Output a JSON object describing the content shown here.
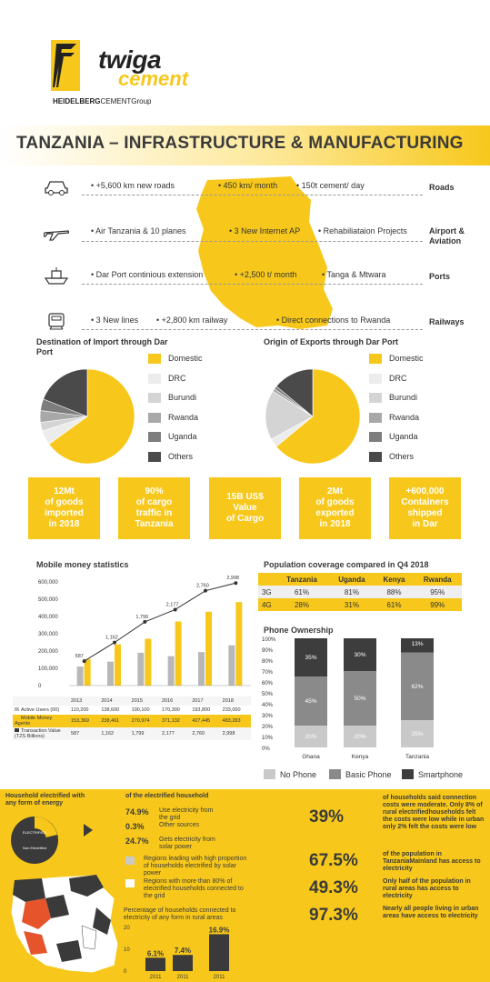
{
  "header": {
    "logo_line1": "twiga",
    "logo_line2": "cement",
    "logo_sub_bold": "HEIDELBERG",
    "logo_sub_rest": "CEMENTGroup",
    "title": "TANZANIA – INFRASTRUCTURE & MANUFACTURING"
  },
  "infrastructure": [
    {
      "icon": "car-icon",
      "category": "Roads",
      "items": [
        "+5,600 km new roads",
        "450 km/ month",
        "150t cement/ day"
      ]
    },
    {
      "icon": "airplane-icon",
      "category": "Airport &\nAviation",
      "items": [
        "Air Tanzania & 10 planes",
        "3 New Internet AP",
        "Rehabiliataion Projects"
      ]
    },
    {
      "icon": "ship-icon",
      "category": "Ports",
      "items": [
        "Dar Port continious extension",
        "+2,500 t/ month",
        "Tanga & Mtwara"
      ]
    },
    {
      "icon": "train-icon",
      "category": "Railways",
      "items": [
        "3 New lines",
        "+2,800 km railway",
        "Direct connections to Rwanda"
      ]
    }
  ],
  "import_pie": {
    "title": "Destination of Import through Dar Port",
    "labels": [
      "Domestic",
      "DRC",
      "Burundi",
      "Rwanda",
      "Uganda",
      "Others"
    ],
    "values": [
      65,
      5,
      3,
      4,
      4,
      19
    ],
    "colors": [
      "#f7c81b",
      "#ececec",
      "#d4d4d4",
      "#a8a8a8",
      "#7d7d7d",
      "#4a4a4a"
    ]
  },
  "export_pie": {
    "title": "Origin of Exports through Dar Port",
    "labels": [
      "Domestic",
      "DRC",
      "Burundi",
      "Rwanda",
      "Uganda",
      "Others"
    ],
    "values": [
      64,
      3,
      17,
      1,
      1,
      14
    ],
    "colors": [
      "#f7c81b",
      "#ececec",
      "#d4d4d4",
      "#a8a8a8",
      "#7d7d7d",
      "#4a4a4a"
    ]
  },
  "stats": [
    "12Mt\nof goods\nimported\nin 2018",
    "90%\nof cargo\ntraffic in\nTanzania",
    "15B US$\nValue\nof Cargo",
    "2Mt\nof goods\nexported\nin 2018",
    "+600,000\nContainers\nshipped\nin Dar"
  ],
  "chart_data": [
    {
      "type": "bar",
      "title": "Mobile money statistics",
      "categories": [
        "2013",
        "2014",
        "2015",
        "2016",
        "2017",
        "2018"
      ],
      "ylim": [
        0,
        600000
      ],
      "yticks": [
        "600,000",
        "500,000",
        "400,000",
        "300,000",
        "200,000",
        "100,000",
        "0"
      ],
      "series": [
        {
          "name": "Active Users (00)",
          "values": [
            110200,
            138600,
            190100,
            170300,
            193800,
            233000
          ],
          "display": [
            "110,200",
            "138,600",
            "190,100",
            "170,300",
            "193,800",
            "233,000"
          ],
          "color": "#b8b8b8"
        },
        {
          "name": "Mobile Money Agents",
          "values": [
            153369,
            238461,
            270974,
            371132,
            427445,
            483283
          ],
          "display": [
            "153,369",
            "238,461",
            "270,974",
            "371,132",
            "427,445",
            "483,283"
          ],
          "color": "#f7c81b"
        },
        {
          "name": "Transaction Value (TZS Billions)",
          "values": [
            587,
            1162,
            1799,
            2177,
            2760,
            2998
          ],
          "display": [
            "587",
            "1,162",
            "1,799",
            "2,177",
            "2,760",
            "2,998"
          ],
          "color": "#3a3a3a"
        }
      ]
    },
    {
      "type": "table",
      "title": "Population coverage compared in Q4 2018",
      "columns": [
        "",
        "Tanzania",
        "Uganda",
        "Kenya",
        "Rwanda"
      ],
      "rows": [
        [
          "3G",
          "61%",
          "81%",
          "88%",
          "95%"
        ],
        [
          "4G",
          "28%",
          "31%",
          "61%",
          "99%"
        ]
      ]
    },
    {
      "type": "bar",
      "title": "Phone Ownership",
      "categories": [
        "Ghana",
        "Kenya",
        "Tanzania"
      ],
      "ylim": [
        0,
        100
      ],
      "yticks": [
        "100%",
        "90%",
        "80%",
        "70%",
        "60%",
        "50%",
        "40%",
        "30%",
        "20%",
        "10%",
        "0%"
      ],
      "series": [
        {
          "name": "No Phone",
          "values": [
            20,
            20,
            25
          ],
          "color": "#c9c9c9"
        },
        {
          "name": "Basic Phone",
          "values": [
            45,
            50,
            62
          ],
          "color": "#8a8a8a"
        },
        {
          "name": "Smartphone",
          "values": [
            35,
            30,
            13
          ],
          "color": "#3d3d3d"
        }
      ]
    },
    {
      "type": "bar",
      "title": "Percentage of households connected to electricity of any form in rural areas",
      "categories": [
        "2011",
        "2011",
        "2011"
      ],
      "ylim": [
        0,
        20
      ],
      "yticks": [
        "20",
        "10",
        "0"
      ],
      "series": [
        {
          "name": "",
          "values": [
            6.1,
            7.4,
            16.9
          ],
          "display": [
            "6.1%",
            "7.4%",
            "16.9%"
          ],
          "color": "#3a3a3a"
        }
      ]
    }
  ],
  "electricity": {
    "household_title": "Household electrified with any form of energy",
    "donut_label1": "ELECTRIFIED",
    "donut_label2": "Non Electrified",
    "of_title": "of the electrified household",
    "rows": [
      {
        "pct": "74.9%",
        "text": "Use electricity from the grid"
      },
      {
        "pct": "0.3%",
        "text": "Other sources"
      },
      {
        "pct": "24.7%",
        "text": "Gets electricity from solar power"
      }
    ],
    "legend1": "Regions leading with high proportion of households electrified by solar power",
    "legend2": "Regions with more than 80% of electrified households connected to the grid",
    "facts": [
      {
        "pct": "39%",
        "text": "of households said connection costs were moderate. Only 8% of rural electrifiedhouseholds felt the costs were low while in urban only 2% felt the costs were low"
      },
      {
        "pct": "67.5%",
        "text": "of the population in TanzaniaMainland has access to electricity"
      },
      {
        "pct": "49.3%",
        "text": "Only half of the population in rural areas has access to electricity"
      },
      {
        "pct": "97.3%",
        "text": "Nearly all people living in urban areas have access to electricity"
      }
    ]
  }
}
